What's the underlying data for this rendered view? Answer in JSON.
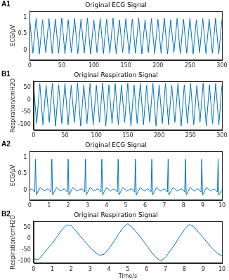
{
  "chart_data": [
    {
      "type": "line",
      "title": "Original ECG Signal",
      "annotations": [
        "A1"
      ],
      "ylabel": "ECG/μV",
      "color": "#0072bd",
      "grid": false,
      "xlim": [
        0,
        300
      ],
      "xticks": [
        0,
        50,
        100,
        150,
        200,
        250,
        300
      ],
      "ylim": [
        -0.3,
        1.2
      ],
      "yticks": [
        0,
        0.5,
        1
      ],
      "x": [
        0,
        5,
        10,
        15,
        20,
        25,
        30,
        35,
        40,
        45,
        50,
        55,
        60,
        65,
        70,
        75,
        80,
        85,
        90,
        95,
        100,
        105,
        110,
        115,
        120,
        125,
        130,
        135,
        140,
        145,
        150,
        155,
        160,
        165,
        170,
        175,
        180,
        185,
        190,
        195,
        200,
        205,
        210,
        215,
        220,
        225,
        230,
        235,
        240,
        245,
        250,
        255,
        260,
        265,
        270,
        275,
        280,
        285,
        290,
        295,
        300
      ],
      "values": [
        0.95,
        -0.1,
        0.98,
        -0.12,
        0.93,
        -0.08,
        0.97,
        -0.11,
        0.95,
        -0.1,
        0.98,
        -0.12,
        0.93,
        -0.08,
        0.97,
        -0.11,
        0.95,
        -0.1,
        0.98,
        -0.12,
        0.93,
        -0.08,
        0.97,
        -0.11,
        0.95,
        -0.1,
        0.98,
        -0.12,
        0.93,
        -0.08,
        0.97,
        -0.11,
        0.95,
        -0.1,
        0.98,
        -0.12,
        0.93,
        -0.08,
        0.97,
        -0.11,
        0.95,
        -0.1,
        0.98,
        -0.12,
        0.93,
        -0.08,
        0.97,
        -0.11,
        0.95,
        -0.1,
        0.98,
        -0.12,
        0.93,
        -0.08,
        0.97,
        -0.11,
        0.95,
        -0.1,
        0.98,
        -0.12,
        0.95
      ]
    },
    {
      "type": "line",
      "title": "Original Respiration Signal",
      "annotations": [
        "B1"
      ],
      "ylabel": "Respiration/cmH2O",
      "color": "#0072bd",
      "grid": false,
      "xlim": [
        0,
        300
      ],
      "xticks": [
        0,
        50,
        100,
        150,
        200,
        250,
        300
      ],
      "ylim": [
        -120,
        75
      ],
      "yticks": [
        -100,
        -50,
        0,
        50
      ],
      "x": [
        0,
        5,
        10,
        15,
        20,
        25,
        30,
        35,
        40,
        45,
        50,
        55,
        60,
        65,
        70,
        75,
        80,
        85,
        90,
        95,
        100,
        105,
        110,
        115,
        120,
        125,
        130,
        135,
        140,
        145,
        150,
        155,
        160,
        165,
        170,
        175,
        180,
        185,
        190,
        195,
        200,
        205,
        210,
        215,
        220,
        225,
        230,
        235,
        240,
        245,
        250,
        255,
        260,
        265,
        270,
        275,
        280,
        285,
        290,
        295,
        300
      ],
      "values": [
        60,
        -95,
        65,
        -100,
        58,
        -90,
        66,
        -105,
        60,
        -95,
        65,
        -100,
        58,
        -90,
        66,
        -105,
        60,
        -95,
        65,
        -100,
        58,
        -90,
        66,
        -105,
        60,
        -95,
        65,
        -100,
        58,
        -90,
        66,
        -105,
        60,
        -95,
        65,
        -100,
        58,
        -90,
        66,
        -105,
        60,
        -95,
        65,
        -100,
        58,
        -90,
        66,
        -105,
        60,
        -95,
        65,
        -100,
        58,
        -90,
        66,
        -105,
        60,
        -95,
        65,
        -100,
        60
      ]
    },
    {
      "type": "line",
      "title": "Original ECG Signal",
      "annotations": [
        "A2"
      ],
      "ylabel": "ECG/μV",
      "color": "#0072bd",
      "grid": false,
      "xlim": [
        0,
        10
      ],
      "xticks": [
        0,
        1,
        2,
        3,
        4,
        5,
        6,
        7,
        8,
        9,
        10
      ],
      "ylim": [
        -0.3,
        1.2
      ],
      "yticks": [
        0,
        0.5,
        1
      ],
      "x": [
        0,
        0.1,
        0.26,
        0.3,
        0.34,
        0.55,
        0.75,
        0.95,
        1.11,
        1.15,
        1.19,
        1.4,
        1.6,
        1.8,
        1.96,
        2.0,
        2.04,
        2.25,
        2.45,
        2.7,
        2.86,
        2.9,
        2.94,
        3.15,
        3.35,
        3.55,
        3.71,
        3.75,
        3.79,
        4.0,
        4.2,
        4.4,
        4.56,
        4.6,
        4.64,
        4.85,
        5.05,
        5.3,
        5.46,
        5.5,
        5.54,
        5.75,
        5.95,
        6.15,
        6.31,
        6.35,
        6.39,
        6.6,
        6.8,
        7.0,
        7.16,
        7.2,
        7.24,
        7.45,
        7.65,
        7.9,
        8.06,
        8.1,
        8.14,
        8.35,
        8.55,
        8.75,
        8.91,
        8.95,
        8.99,
        9.2,
        9.4,
        9.6,
        9.76,
        9.8,
        9.84,
        10
      ],
      "values": [
        -0.02,
        0.04,
        -0.06,
        0.95,
        -0.15,
        0.08,
        -0.03,
        0.04,
        -0.06,
        0.95,
        -0.15,
        0.08,
        -0.03,
        0.04,
        -0.06,
        0.95,
        -0.15,
        0.08,
        -0.03,
        0.04,
        -0.06,
        0.95,
        -0.15,
        0.08,
        -0.03,
        0.04,
        -0.06,
        0.95,
        -0.15,
        0.08,
        -0.03,
        0.04,
        -0.06,
        0.95,
        -0.15,
        0.08,
        -0.03,
        0.04,
        -0.06,
        0.95,
        -0.15,
        0.08,
        -0.03,
        0.04,
        -0.06,
        0.95,
        -0.15,
        0.08,
        -0.03,
        0.04,
        -0.06,
        0.95,
        -0.15,
        0.08,
        -0.03,
        0.04,
        -0.06,
        0.95,
        -0.15,
        0.08,
        -0.03,
        0.04,
        -0.06,
        0.95,
        -0.15,
        0.08,
        -0.03,
        0.04,
        -0.06,
        0.95,
        -0.15,
        0
      ]
    },
    {
      "type": "line",
      "title": "Original Respiration Signal",
      "annotations": [
        "B2"
      ],
      "xlabel": "Time/s",
      "ylabel": "Respiration/cmH2O",
      "color": "#0072bd",
      "grid": false,
      "xlim": [
        0,
        10
      ],
      "xticks": [
        0,
        1,
        2,
        3,
        4,
        5,
        6,
        7,
        8,
        9,
        10
      ],
      "ylim": [
        -110,
        80
      ],
      "yticks": [
        -100,
        -50,
        0,
        50
      ],
      "x": [
        0,
        0.25,
        0.5,
        0.75,
        1,
        1.25,
        1.5,
        1.75,
        2,
        2.25,
        2.5,
        2.75,
        3,
        3.25,
        3.5,
        3.75,
        4,
        4.25,
        4.5,
        4.75,
        5,
        5.25,
        5.5,
        5.75,
        6,
        6.25,
        6.5,
        6.75,
        7,
        7.25,
        7.5,
        7.75,
        8,
        8.25,
        8.5,
        8.75,
        9,
        9.25,
        9.5,
        9.75,
        10
      ],
      "values": [
        -90,
        -95,
        -70,
        -45,
        -20,
        10,
        40,
        62,
        60,
        35,
        10,
        -15,
        -40,
        -60,
        -75,
        -70,
        -45,
        -15,
        20,
        50,
        68,
        50,
        25,
        0,
        -30,
        -60,
        -85,
        -100,
        -85,
        -55,
        -25,
        10,
        40,
        65,
        55,
        30,
        5,
        -20,
        -45,
        -65,
        -78
      ]
    }
  ]
}
